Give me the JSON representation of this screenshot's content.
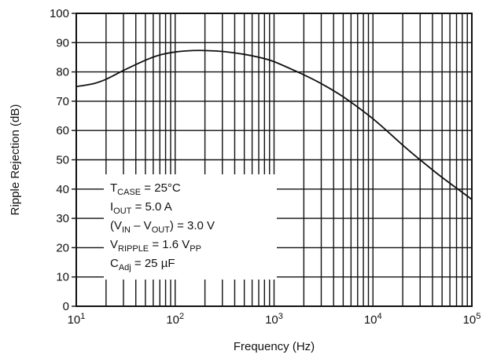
{
  "chart_data": {
    "type": "line",
    "xlabel": "Frequency (Hz)",
    "ylabel": "Ripple Rejection (dB)",
    "xscale": "log",
    "xlim": [
      10,
      100000
    ],
    "ylim": [
      0,
      100
    ],
    "grid": true,
    "x_tick_labels": [
      {
        "base": "10",
        "exp": "1",
        "value": 10
      },
      {
        "base": "10",
        "exp": "2",
        "value": 100
      },
      {
        "base": "10",
        "exp": "3",
        "value": 1000
      },
      {
        "base": "10",
        "exp": "4",
        "value": 10000
      },
      {
        "base": "10",
        "exp": "5",
        "value": 100000
      }
    ],
    "y_ticks": [
      "0",
      "10",
      "20",
      "30",
      "40",
      "50",
      "60",
      "70",
      "80",
      "90",
      "100"
    ],
    "series": [
      {
        "x": [
          10,
          15,
          20,
          30,
          50,
          70,
          100,
          150,
          200,
          300,
          500,
          700,
          1000,
          2000,
          3000,
          5000,
          10000,
          20000,
          30000,
          50000,
          100000
        ],
        "y": [
          75,
          76,
          77.5,
          80.5,
          84,
          85.8,
          86.8,
          87.3,
          87.3,
          87,
          86,
          85,
          83.5,
          79,
          76,
          71.5,
          64,
          55,
          50,
          44,
          36.5
        ]
      }
    ],
    "annotation": [
      {
        "parts": [
          {
            "text": "T"
          },
          {
            "text": "CASE",
            "sub": true
          },
          {
            "text": " = 25°C"
          }
        ]
      },
      {
        "parts": [
          {
            "text": "I"
          },
          {
            "text": "OUT",
            "sub": true
          },
          {
            "text": " = 5.0 A"
          }
        ]
      },
      {
        "parts": [
          {
            "text": "(V"
          },
          {
            "text": "IN",
            "sub": true
          },
          {
            "text": " – V"
          },
          {
            "text": "OUT",
            "sub": true
          },
          {
            "text": ") = 3.0 V"
          }
        ]
      },
      {
        "parts": [
          {
            "text": "V"
          },
          {
            "text": "RIPPLE",
            "sub": true
          },
          {
            "text": " = 1.6 V"
          },
          {
            "text": "PP",
            "sub": true
          }
        ]
      },
      {
        "parts": [
          {
            "text": "C"
          },
          {
            "text": "Adj",
            "sub": true
          },
          {
            "text": " = 25 µF"
          }
        ]
      }
    ]
  }
}
